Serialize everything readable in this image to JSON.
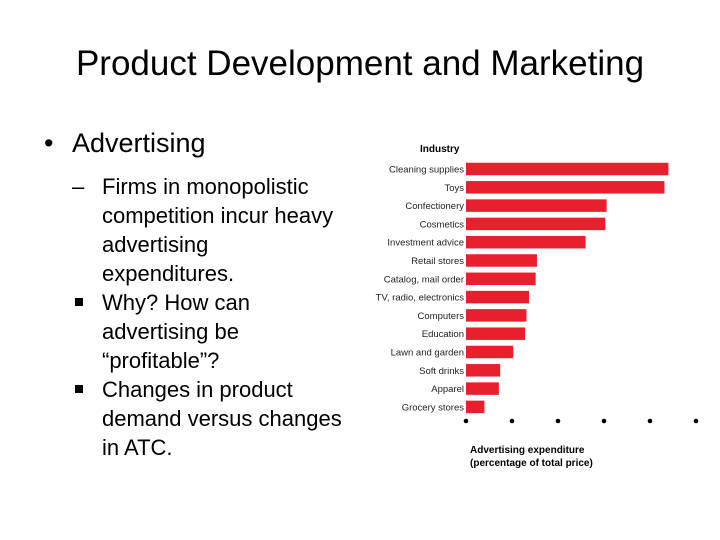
{
  "slide": {
    "title": "Product Development and Marketing",
    "bullet_symbol": "•",
    "bullet": "Advertising",
    "sub_dash": "–",
    "sub_point": "Firms in monopolistic competition incur heavy advertising expenditures.",
    "sub_sub_points": [
      "Why?  How can advertising be “profitable”?",
      "Changes in product demand versus changes in ATC."
    ]
  },
  "colors": {
    "bar": "#e8202e",
    "text": "#000000"
  },
  "chart_data": {
    "type": "bar",
    "orientation": "horizontal",
    "category_header": "Industry",
    "categories": [
      "Cleaning supplies",
      "Toys",
      "Confectionery",
      "Cosmetics",
      "Investment advice",
      "Retail stores",
      "Catalog, mail order",
      "TV, radio, electronics",
      "Computers",
      "Education",
      "Lawn and garden",
      "Soft drinks",
      "Apparel",
      "Grocery stores"
    ],
    "values": [
      15.4,
      15.1,
      10.7,
      10.6,
      9.1,
      5.4,
      5.3,
      4.8,
      4.6,
      4.5,
      3.6,
      2.6,
      2.5,
      1.4
    ],
    "xlim": [
      0,
      17.5
    ],
    "x_ticks": [
      0,
      3.5,
      7,
      10.5,
      14,
      17.5
    ],
    "xlabel": "Advertising expenditure",
    "xlabel_sub": "(percentage of total price)",
    "grid": false
  }
}
